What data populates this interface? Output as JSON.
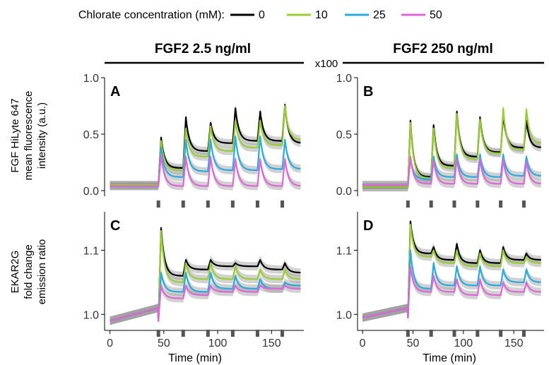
{
  "legend": {
    "title": "Chlorate concentration (mM):",
    "entries": [
      {
        "label": "0",
        "color": "#000000"
      },
      {
        "label": "10",
        "color": "#9ACD32"
      },
      {
        "label": "25",
        "color": "#29ABE2"
      },
      {
        "label": "50",
        "color": "#E066D8"
      }
    ]
  },
  "column_titles": [
    "FGF2 2.5 ng/ml",
    "FGF2 250 ng/ml"
  ],
  "multiplier_label": "x100",
  "xlabel": "Time (min)",
  "ylabel_top": [
    "FGF HiLyte 647",
    "mean fluorescence",
    "intensity (a.u.)"
  ],
  "ylabel_bottom": [
    "EKAR2G",
    "fold change",
    "emission ratio"
  ],
  "chart_data": [
    {
      "type": "line",
      "panel": "A",
      "column": "FGF2 2.5 ng/ml",
      "xlim": [
        -5,
        180
      ],
      "ylim": [
        -0.05,
        1.0
      ],
      "xticks": [
        0,
        50,
        100,
        150
      ],
      "yticks": [
        0.0,
        0.5,
        1.0
      ],
      "ytick_labels": [
        "0.0",
        "0.5",
        "1.0"
      ],
      "pulse_times": [
        45,
        68,
        91,
        114,
        137,
        160
      ],
      "series": [
        {
          "name": "0",
          "baseline": 0.05,
          "peaks": [
            0.47,
            0.65,
            0.6,
            0.73,
            0.7,
            0.76
          ],
          "floors": [
            0.2,
            0.35,
            0.42,
            0.44,
            0.44,
            0.42
          ]
        },
        {
          "name": "10",
          "baseline": 0.05,
          "peaks": [
            0.44,
            0.55,
            0.57,
            0.62,
            0.62,
            0.75
          ],
          "floors": [
            0.18,
            0.3,
            0.35,
            0.38,
            0.4,
            0.45
          ]
        },
        {
          "name": "25",
          "baseline": 0.04,
          "peaks": [
            0.38,
            0.45,
            0.45,
            0.48,
            0.48,
            0.45
          ],
          "floors": [
            0.12,
            0.17,
            0.18,
            0.18,
            0.19,
            0.19
          ]
        },
        {
          "name": "50",
          "baseline": 0.04,
          "peaks": [
            0.32,
            0.3,
            0.3,
            0.28,
            0.28,
            0.28
          ],
          "floors": [
            0.04,
            0.04,
            0.04,
            0.04,
            0.04,
            0.04
          ]
        }
      ]
    },
    {
      "type": "line",
      "panel": "B",
      "column": "FGF2 250 ng/ml",
      "xlim": [
        -5,
        180
      ],
      "ylim": [
        -0.05,
        1.0
      ],
      "xticks": [
        0,
        50,
        100,
        150
      ],
      "yticks": [
        0.0,
        0.5,
        1.0
      ],
      "ytick_labels": [
        "0.0",
        "0.5",
        "1.0"
      ],
      "pulse_times": [
        45,
        68,
        91,
        114,
        137,
        160
      ],
      "series": [
        {
          "name": "0",
          "baseline": 0.03,
          "peaks": [
            0.62,
            0.58,
            0.7,
            0.65,
            0.68,
            0.62
          ],
          "floors": [
            0.12,
            0.22,
            0.3,
            0.34,
            0.38,
            0.38
          ]
        },
        {
          "name": "10",
          "baseline": 0.03,
          "peaks": [
            0.6,
            0.55,
            0.68,
            0.63,
            0.73,
            0.72
          ],
          "floors": [
            0.11,
            0.2,
            0.28,
            0.33,
            0.36,
            0.42
          ]
        },
        {
          "name": "25",
          "baseline": 0.05,
          "peaks": [
            0.28,
            0.3,
            0.32,
            0.32,
            0.32,
            0.3
          ],
          "floors": [
            0.1,
            0.12,
            0.12,
            0.12,
            0.13,
            0.13
          ]
        },
        {
          "name": "50",
          "baseline": 0.05,
          "peaks": [
            0.3,
            0.27,
            0.28,
            0.28,
            0.28,
            0.26
          ],
          "floors": [
            0.06,
            0.06,
            0.06,
            0.06,
            0.06,
            0.06
          ]
        }
      ]
    },
    {
      "type": "line",
      "panel": "C",
      "column": "FGF2 2.5 ng/ml",
      "xlim": [
        -5,
        180
      ],
      "ylim": [
        0.975,
        1.16
      ],
      "xticks": [
        0,
        50,
        100,
        150
      ],
      "yticks": [
        1.0,
        1.1
      ],
      "ytick_labels": [
        "1.0",
        "1.1"
      ],
      "pulse_times": [
        45,
        68,
        91,
        114,
        137,
        160
      ],
      "series": [
        {
          "name": "0",
          "baseline": 0.99,
          "peaks": [
            1.135,
            1.085,
            1.085,
            1.08,
            1.085,
            1.08
          ],
          "floors": [
            1.06,
            1.07,
            1.075,
            1.075,
            1.07,
            1.065
          ]
        },
        {
          "name": "10",
          "baseline": 0.99,
          "peaks": [
            1.13,
            1.08,
            1.08,
            1.075,
            1.07,
            1.07
          ],
          "floors": [
            1.05,
            1.055,
            1.055,
            1.055,
            1.055,
            1.055
          ]
        },
        {
          "name": "25",
          "baseline": 0.99,
          "peaks": [
            1.065,
            1.065,
            1.065,
            1.06,
            1.055,
            1.05
          ],
          "floors": [
            1.035,
            1.035,
            1.04,
            1.04,
            1.04,
            1.045
          ]
        },
        {
          "name": "50",
          "baseline": 0.99,
          "peaks": [
            1.045,
            1.045,
            1.045,
            1.045,
            1.045,
            1.045
          ],
          "floors": [
            1.025,
            1.03,
            1.035,
            1.035,
            1.04,
            1.04
          ]
        }
      ]
    },
    {
      "type": "line",
      "panel": "D",
      "column": "FGF2 250 ng/ml",
      "xlim": [
        -5,
        180
      ],
      "ylim": [
        0.975,
        1.16
      ],
      "xticks": [
        0,
        50,
        100,
        150
      ],
      "yticks": [
        1.0,
        1.1
      ],
      "ytick_labels": [
        "1.0",
        "1.1"
      ],
      "pulse_times": [
        45,
        68,
        91,
        114,
        137,
        160
      ],
      "series": [
        {
          "name": "0",
          "baseline": 0.995,
          "peaks": [
            1.145,
            1.105,
            1.11,
            1.1,
            1.105,
            1.095
          ],
          "floors": [
            1.095,
            1.085,
            1.08,
            1.08,
            1.085,
            1.085
          ]
        },
        {
          "name": "10",
          "baseline": 0.995,
          "peaks": [
            1.14,
            1.1,
            1.1,
            1.095,
            1.1,
            1.09
          ],
          "floors": [
            1.09,
            1.08,
            1.075,
            1.075,
            1.08,
            1.08
          ]
        },
        {
          "name": "25",
          "baseline": 0.995,
          "peaks": [
            1.1,
            1.08,
            1.075,
            1.075,
            1.07,
            1.07
          ],
          "floors": [
            1.04,
            1.045,
            1.045,
            1.045,
            1.05,
            1.05
          ]
        },
        {
          "name": "50",
          "baseline": 0.995,
          "peaks": [
            1.075,
            1.06,
            1.055,
            1.055,
            1.05,
            1.05
          ],
          "floors": [
            1.035,
            1.035,
            1.03,
            1.03,
            1.035,
            1.035
          ]
        }
      ]
    }
  ]
}
